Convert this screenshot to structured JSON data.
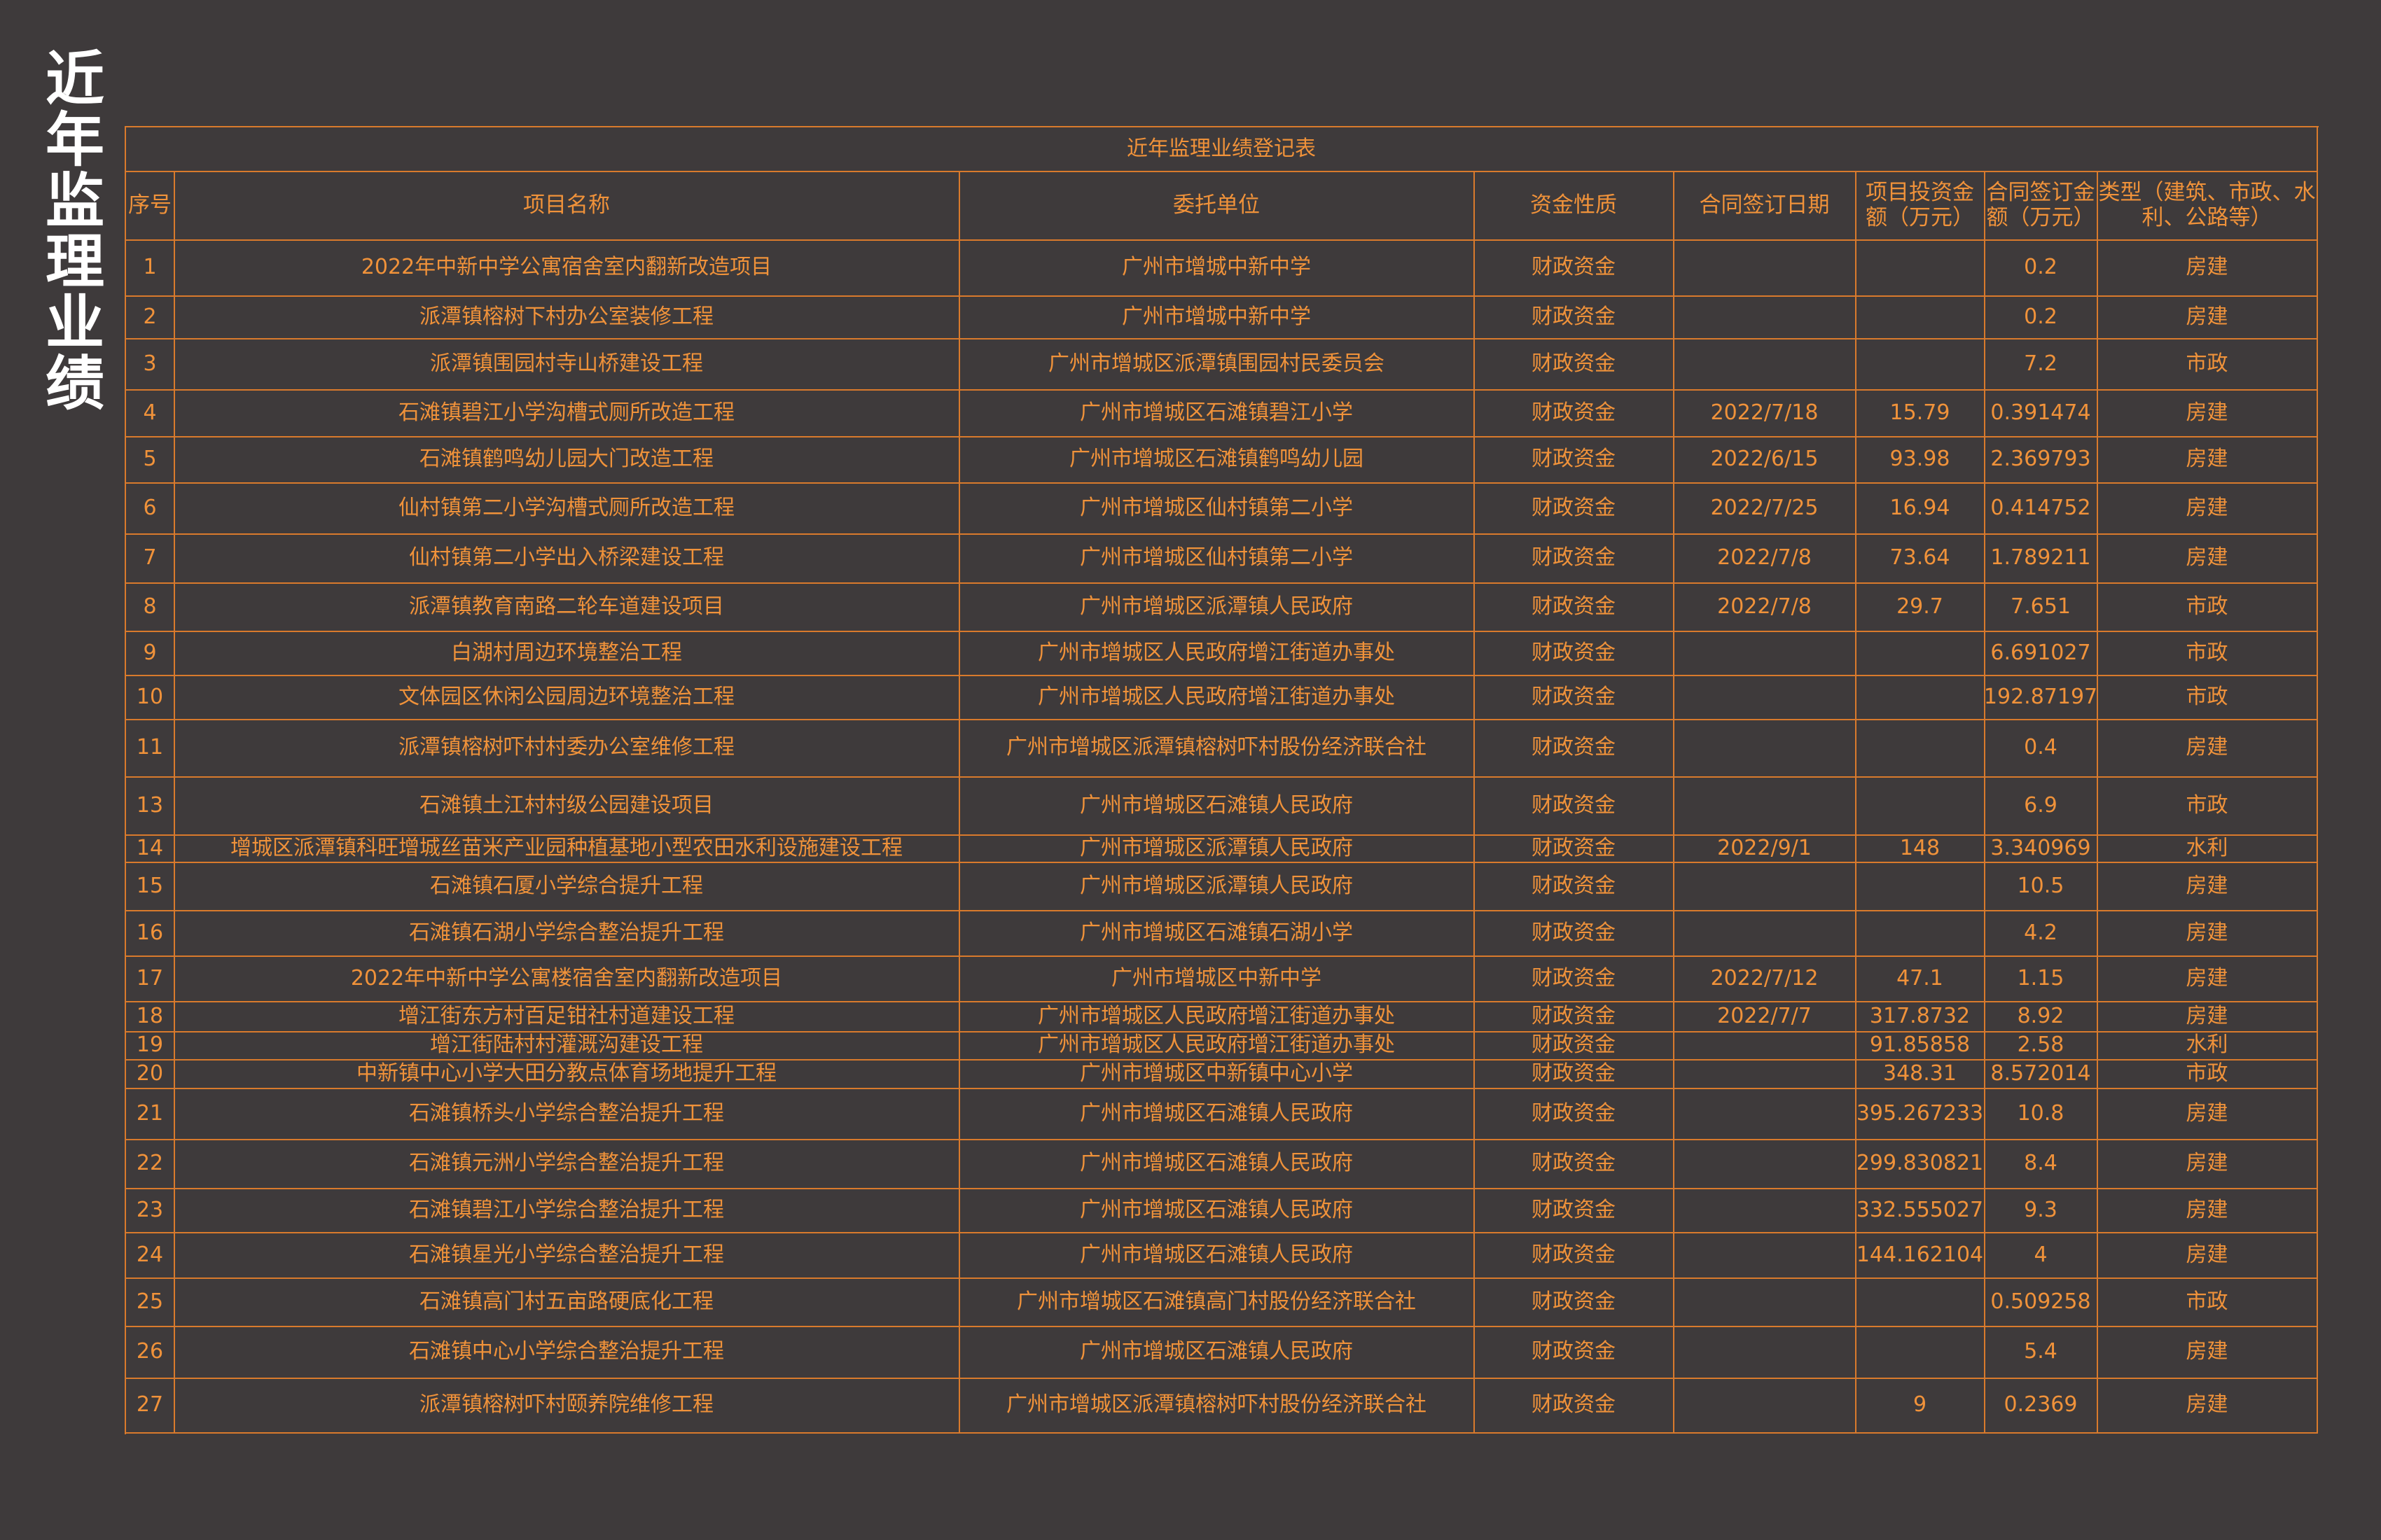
{
  "page_title": "近年监理业绩",
  "table": {
    "title": "近年监理业绩登记表",
    "headers": [
      "序号",
      "项目名称",
      "委托单位",
      "资金性质",
      "合同签订日期",
      "项目投资金额（万元）",
      "合同签订金额（万元）",
      "类型（建筑、市政、水利、公路等）"
    ],
    "rows": [
      [
        "1",
        "2022年中新中学公寓宿舍室内翻新改造项目",
        "广州市增城中新中学",
        "财政资金",
        null,
        null,
        "0.2",
        "房建"
      ],
      [
        "2",
        "派潭镇榕树下村办公室装修工程",
        "广州市增城中新中学",
        "财政资金",
        null,
        null,
        "0.2",
        "房建"
      ],
      [
        "3",
        "派潭镇围园村寺山桥建设工程",
        "广州市增城区派潭镇围园村民委员会",
        "财政资金",
        null,
        null,
        "7.2",
        "市政"
      ],
      [
        "4",
        "石滩镇碧江小学沟槽式厕所改造工程",
        "广州市增城区石滩镇碧江小学",
        "财政资金",
        "2022/7/18",
        "15.79",
        "0.391474",
        "房建"
      ],
      [
        "5",
        "石滩镇鹤鸣幼儿园大门改造工程",
        "广州市增城区石滩镇鹤鸣幼儿园",
        "财政资金",
        "2022/6/15",
        "93.98",
        "2.369793",
        "房建"
      ],
      [
        "6",
        "仙村镇第二小学沟槽式厕所改造工程",
        "广州市增城区仙村镇第二小学",
        "财政资金",
        "2022/7/25",
        "16.94",
        "0.414752",
        "房建"
      ],
      [
        "7",
        "仙村镇第二小学出入桥梁建设工程",
        "广州市增城区仙村镇第二小学",
        "财政资金",
        "2022/7/8",
        "73.64",
        "1.789211",
        "房建"
      ],
      [
        "8",
        "派潭镇教育南路二轮车道建设项目",
        "广州市增城区派潭镇人民政府",
        "财政资金",
        "2022/7/8",
        "29.7",
        "7.651",
        "市政"
      ],
      [
        "9",
        "白湖村周边环境整治工程",
        "广州市增城区人民政府增江街道办事处",
        "财政资金",
        null,
        null,
        "6.691027",
        "市政"
      ],
      [
        "10",
        "文体园区休闲公园周边环境整治工程",
        "广州市增城区人民政府增江街道办事处",
        "财政资金",
        null,
        null,
        "192.87197",
        "市政"
      ],
      [
        "11",
        "派潭镇榕树吓村村委办公室维修工程",
        "广州市增城区派潭镇榕树吓村股份经济联合社",
        "财政资金",
        null,
        null,
        "0.4",
        "房建"
      ],
      [
        "13",
        "石滩镇土江村村级公园建设项目",
        "广州市增城区石滩镇人民政府",
        "财政资金",
        null,
        null,
        "6.9",
        "市政"
      ],
      [
        "14",
        "增城区派潭镇科旺增城丝苗米产业园种植基地小型农田水利设施建设工程",
        "广州市增城区派潭镇人民政府",
        "财政资金",
        "2022/9/1",
        "148",
        "3.340969",
        "水利"
      ],
      [
        "15",
        "石滩镇石厦小学综合提升工程",
        "广州市增城区派潭镇人民政府",
        "财政资金",
        null,
        null,
        "10.5",
        "房建"
      ],
      [
        "16",
        "石滩镇石湖小学综合整治提升工程",
        "广州市增城区石滩镇石湖小学",
        "财政资金",
        null,
        null,
        "4.2",
        "房建"
      ],
      [
        "17",
        "2022年中新中学公寓楼宿舍室内翻新改造项目",
        "广州市增城区中新中学",
        "财政资金",
        "2022/7/12",
        "47.1",
        "1.15",
        "房建"
      ],
      [
        "18",
        "增江街东方村百足钳社村道建设工程",
        "广州市增城区人民政府增江街道办事处",
        "财政资金",
        "2022/7/7",
        "317.8732",
        "8.92",
        "房建"
      ],
      [
        "19",
        "增江街陆村村灌溉沟建设工程",
        "广州市增城区人民政府增江街道办事处",
        "财政资金",
        null,
        "91.85858",
        "2.58",
        "水利"
      ],
      [
        "20",
        "中新镇中心小学大田分教点体育场地提升工程",
        "广州市增城区中新镇中心小学",
        "财政资金",
        null,
        "348.31",
        "8.572014",
        "市政"
      ],
      [
        "21",
        "石滩镇桥头小学综合整治提升工程",
        "广州市增城区石滩镇人民政府",
        "财政资金",
        null,
        "395.267233",
        "10.8",
        "房建"
      ],
      [
        "22",
        "石滩镇元洲小学综合整治提升工程",
        "广州市增城区石滩镇人民政府",
        "财政资金",
        null,
        "299.830821",
        "8.4",
        "房建"
      ],
      [
        "23",
        "石滩镇碧江小学综合整治提升工程",
        "广州市增城区石滩镇人民政府",
        "财政资金",
        null,
        "332.555027",
        "9.3",
        "房建"
      ],
      [
        "24",
        "石滩镇星光小学综合整治提升工程",
        "广州市增城区石滩镇人民政府",
        "财政资金",
        null,
        "144.162104",
        "4",
        "房建"
      ],
      [
        "25",
        "石滩镇高门村五亩路硬底化工程",
        "广州市增城区石滩镇高门村股份经济联合社",
        "财政资金",
        null,
        null,
        "0.509258",
        "市政"
      ],
      [
        "26",
        "石滩镇中心小学综合整治提升工程",
        "广州市增城区石滩镇人民政府",
        "财政资金",
        null,
        null,
        "5.4",
        "房建"
      ],
      [
        "27",
        "派潭镇榕树吓村颐养院维修工程",
        "广州市增城区派潭镇榕树吓村股份经济联合社",
        "财政资金",
        null,
        "9",
        "0.2369",
        "房建"
      ]
    ]
  }
}
